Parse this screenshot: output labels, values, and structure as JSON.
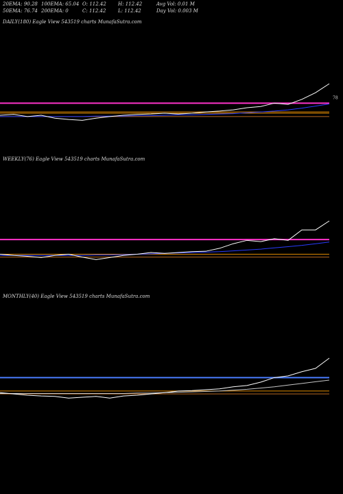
{
  "header": [
    [
      "20EMA: 90.28",
      "100EMA: 65.04",
      "O: 112.42",
      "H: 112.42",
      "Avg Vol: 0.01 M"
    ],
    [
      "50EMA: 76.74",
      "200EMA: 0",
      "C: 112.42",
      "L: 112.42",
      "Day Vol: 0.003 M"
    ]
  ],
  "chart_data": [
    {
      "type": "line",
      "title": "DAILY(180) Eagle   View  543519 charts MunafaSutra.com",
      "last_label": 78,
      "categories": [
        null,
        null,
        null,
        null,
        null,
        null,
        null,
        null,
        null,
        null,
        null,
        null,
        null,
        null,
        null,
        null,
        null,
        null,
        null,
        null,
        null,
        null,
        null,
        null,
        null
      ],
      "ylim": [
        -40,
        255
      ],
      "series": [
        {
          "name": "EMA",
          "color": "#2a3cff",
          "values": [
            34,
            34,
            34,
            34,
            34,
            34,
            34,
            35,
            35,
            35,
            36,
            36,
            37,
            38,
            38,
            39,
            40,
            41,
            43,
            45,
            47,
            50,
            54,
            59,
            64
          ]
        },
        {
          "name": "Price",
          "color": "#ffffff",
          "values": [
            37,
            39,
            34,
            37,
            30,
            27,
            25,
            30,
            34,
            37,
            39,
            40,
            42,
            40,
            42,
            45,
            47,
            50,
            55,
            58,
            66,
            63,
            75,
            91,
            112.42
          ]
        }
      ],
      "reference_lines": [
        {
          "color": "#ff33cc",
          "value": 66
        },
        {
          "color": "#e08a00",
          "value": 45
        },
        {
          "color": "#e08a00",
          "value": 42
        },
        {
          "color": "#b86a20",
          "value": 34
        }
      ]
    },
    {
      "type": "line",
      "title": "WEEKLY(76) Eagle   View  543519 charts MunafaSutra.com",
      "categories": [
        null,
        null,
        null,
        null,
        null,
        null,
        null,
        null,
        null,
        null,
        null,
        null,
        null,
        null,
        null,
        null,
        null,
        null,
        null,
        null,
        null,
        null,
        null,
        null,
        null
      ],
      "ylim": [
        -40,
        255
      ],
      "series": [
        {
          "name": "EMA",
          "color": "#2a3cff",
          "values": [
            30,
            30,
            30,
            30,
            30,
            30,
            30,
            31,
            31,
            32,
            33,
            34,
            35,
            36,
            37,
            38,
            39,
            41,
            43,
            45,
            48,
            51,
            54,
            58,
            62
          ]
        },
        {
          "name": "Price",
          "color": "#ffffff",
          "values": [
            33,
            30,
            28,
            25,
            30,
            33,
            26,
            20,
            25,
            30,
            33,
            37,
            35,
            37,
            39,
            40,
            47,
            58,
            66,
            63,
            70,
            66,
            91,
            91,
            112.42
          ]
        }
      ],
      "reference_lines": [
        {
          "color": "#ff33cc",
          "value": 68
        },
        {
          "color": "#e08a00",
          "value": 33
        },
        {
          "color": "#b86a20",
          "value": 26
        }
      ]
    },
    {
      "type": "line",
      "title": "MONTHLY(40) Eagle   View  543519 charts MunafaSutra.com",
      "categories": [
        null,
        null,
        null,
        null,
        null,
        null,
        null,
        null,
        null,
        null,
        null,
        null,
        null,
        null,
        null,
        null,
        null,
        null,
        null,
        null,
        null,
        null,
        null,
        null,
        null
      ],
      "ylim": [
        -40,
        255
      ],
      "series": [
        {
          "name": "EMA",
          "color": "#c8c8c8",
          "values": [
            28,
            28,
            28,
            28,
            28,
            28,
            28,
            28,
            28,
            28,
            29,
            29,
            30,
            31,
            32,
            33,
            34,
            36,
            38,
            41,
            44,
            48,
            52,
            56,
            60
          ]
        },
        {
          "name": "Price",
          "color": "#ffffff",
          "values": [
            30,
            27,
            24,
            22,
            21,
            17,
            19,
            21,
            17,
            22,
            24,
            27,
            30,
            34,
            35,
            37,
            39,
            44,
            47,
            55,
            66,
            70,
            80,
            88,
            112.42
          ]
        }
      ],
      "reference_lines": [
        {
          "color": "#4a7dff",
          "value": 66
        },
        {
          "color": "#e08a00",
          "value": 34
        },
        {
          "color": "#b86a20",
          "value": 27
        }
      ]
    }
  ]
}
